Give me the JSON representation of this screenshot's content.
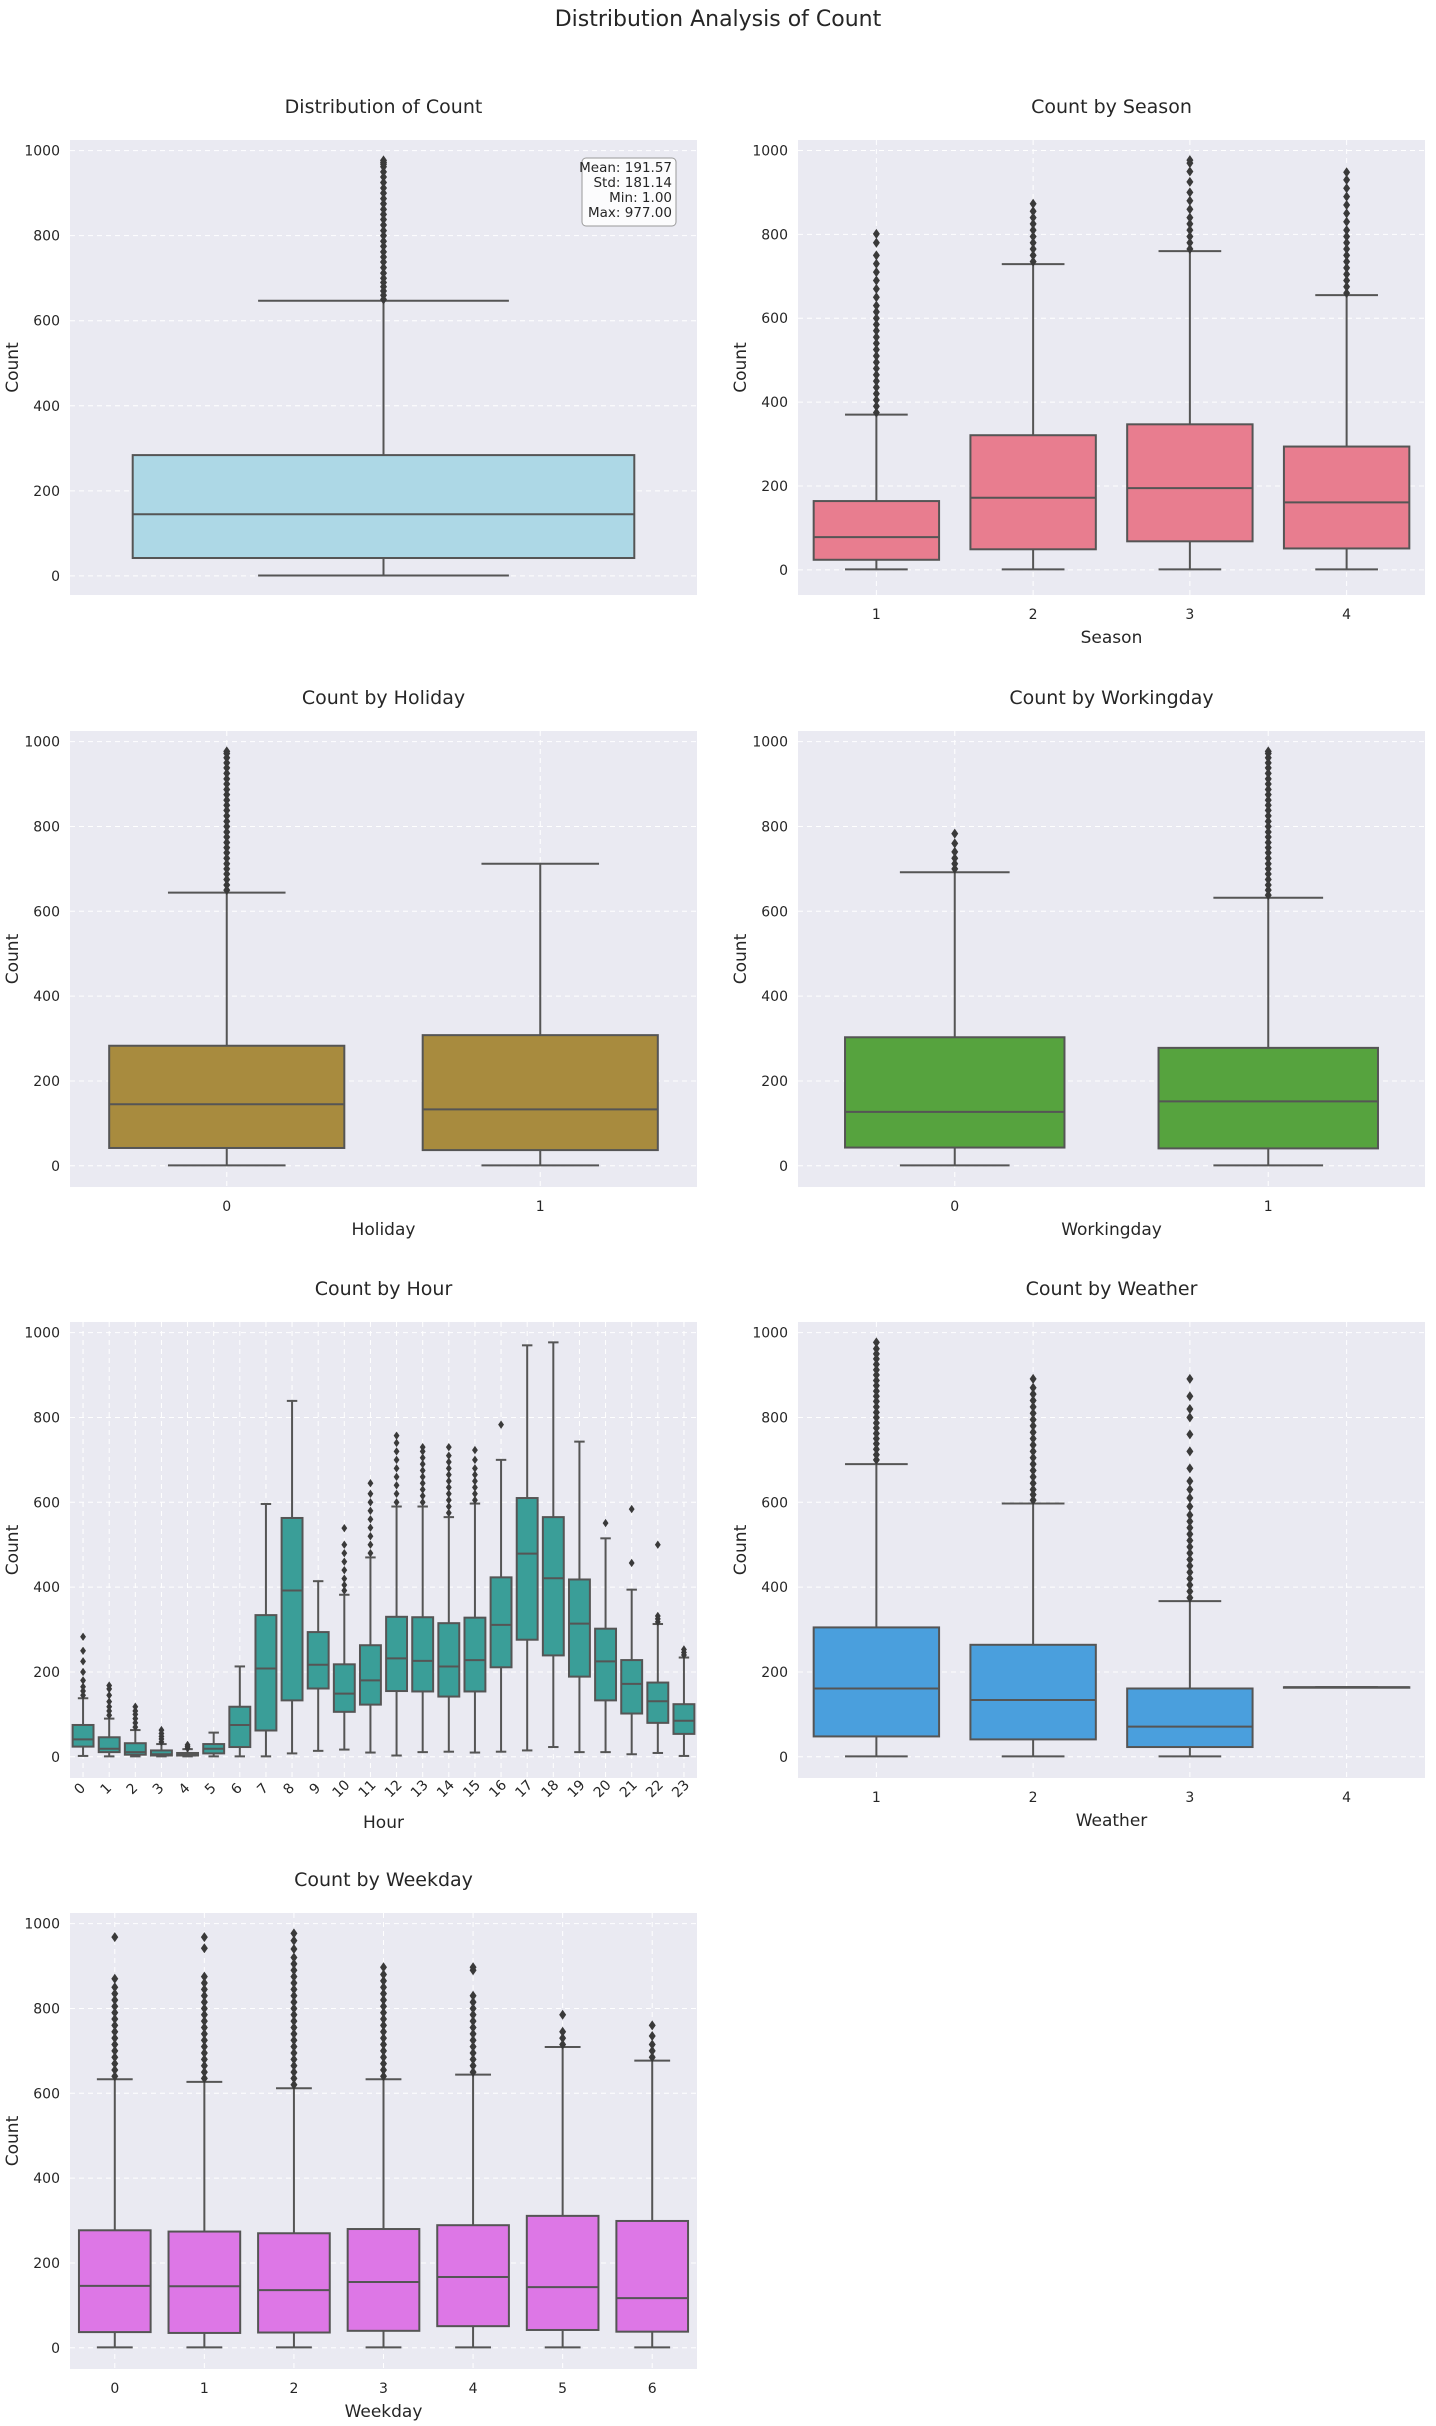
{
  "figure": {
    "suptitle": "Distribution Analysis of Count",
    "colors": {
      "panel_bg": "#eaeaf2",
      "grid": "#ffffff",
      "line": "#555555",
      "flier": "#3a3a3a"
    }
  },
  "chart_data": [
    {
      "id": "overall",
      "type": "boxplot",
      "title": "Distribution of Count",
      "xlabel": "",
      "ylabel": "Count",
      "ylim": [
        -45,
        1025
      ],
      "yticks": [
        0,
        200,
        400,
        600,
        800,
        1000
      ],
      "grid": true,
      "categories": [
        ""
      ],
      "box_color": "#add8e6",
      "stats_text": [
        "Mean: 191.57",
        "Std: 181.14",
        "Min: 1.00",
        "Max: 977.00"
      ],
      "boxes": [
        {
          "cat": "",
          "whislo": 1,
          "q1": 42,
          "med": 145,
          "q3": 284,
          "whishi": 647,
          "fliers": [
            650,
            660,
            670,
            680,
            690,
            700,
            712,
            725,
            738,
            750,
            762,
            775,
            787,
            800,
            812,
            825,
            838,
            850,
            862,
            875,
            887,
            900,
            912,
            925,
            938,
            950,
            962,
            968,
            972,
            977
          ]
        }
      ]
    },
    {
      "id": "season",
      "type": "boxplot",
      "title": "Count by Season",
      "xlabel": "Season",
      "ylabel": "Count",
      "ylim": [
        -60,
        1025
      ],
      "yticks": [
        0,
        200,
        400,
        600,
        800,
        1000
      ],
      "grid": true,
      "categories": [
        "1",
        "2",
        "3",
        "4"
      ],
      "box_color": "#e87d8f",
      "boxes": [
        {
          "cat": "1",
          "whislo": 1,
          "q1": 24,
          "med": 78,
          "q3": 164,
          "whishi": 370,
          "fliers": [
            375,
            390,
            405,
            420,
            435,
            450,
            465,
            480,
            495,
            510,
            525,
            540,
            555,
            570,
            585,
            600,
            615,
            630,
            650,
            670,
            690,
            710,
            730,
            750,
            780,
            801
          ]
        },
        {
          "cat": "2",
          "whislo": 1,
          "q1": 49,
          "med": 172,
          "q3": 321,
          "whishi": 729,
          "fliers": [
            735,
            750,
            765,
            780,
            795,
            810,
            825,
            840,
            855,
            873
          ]
        },
        {
          "cat": "3",
          "whislo": 1,
          "q1": 68,
          "med": 195,
          "q3": 347,
          "whishi": 760,
          "fliers": [
            765,
            780,
            795,
            810,
            825,
            840,
            860,
            880,
            900,
            925,
            950,
            970,
            977
          ]
        },
        {
          "cat": "4",
          "whislo": 1,
          "q1": 51,
          "med": 161,
          "q3": 294,
          "whishi": 655,
          "fliers": [
            660,
            675,
            690,
            705,
            720,
            735,
            750,
            765,
            780,
            795,
            810,
            830,
            850,
            870,
            890,
            910,
            930,
            948
          ]
        }
      ]
    },
    {
      "id": "holiday",
      "type": "boxplot",
      "title": "Count by Holiday",
      "xlabel": "Holiday",
      "ylabel": "Count",
      "ylim": [
        -50,
        1025
      ],
      "yticks": [
        0,
        200,
        400,
        600,
        800,
        1000
      ],
      "grid": true,
      "categories": [
        "0",
        "1"
      ],
      "box_color": "#a88b3e",
      "boxes": [
        {
          "cat": "0",
          "whislo": 1,
          "q1": 42,
          "med": 145,
          "q3": 283,
          "whishi": 644,
          "fliers": [
            650,
            662,
            675,
            688,
            700,
            712,
            725,
            738,
            750,
            762,
            775,
            787,
            800,
            812,
            825,
            838,
            850,
            862,
            875,
            887,
            900,
            912,
            925,
            938,
            950,
            962,
            972,
            977
          ]
        },
        {
          "cat": "1",
          "whislo": 1,
          "q1": 37,
          "med": 133,
          "q3": 308,
          "whishi": 712,
          "fliers": []
        }
      ]
    },
    {
      "id": "workingday",
      "type": "boxplot",
      "title": "Count by Workingday",
      "xlabel": "Workingday",
      "ylabel": "Count",
      "ylim": [
        -50,
        1025
      ],
      "yticks": [
        0,
        200,
        400,
        600,
        800,
        1000
      ],
      "grid": true,
      "categories": [
        "0",
        "1"
      ],
      "box_color": "#56a33e",
      "boxes": [
        {
          "cat": "0",
          "whislo": 1,
          "q1": 43,
          "med": 127,
          "q3": 303,
          "whishi": 692,
          "fliers": [
            700,
            712,
            725,
            740,
            760,
            783
          ]
        },
        {
          "cat": "1",
          "whislo": 1,
          "q1": 41,
          "med": 152,
          "q3": 278,
          "whishi": 632,
          "fliers": [
            638,
            650,
            662,
            675,
            688,
            700,
            712,
            725,
            738,
            750,
            762,
            775,
            787,
            800,
            812,
            825,
            838,
            850,
            862,
            875,
            887,
            900,
            912,
            925,
            938,
            950,
            962,
            972,
            977
          ]
        }
      ]
    },
    {
      "id": "hour",
      "type": "boxplot",
      "title": "Count by Hour",
      "xlabel": "Hour",
      "ylabel": "Count",
      "ylim": [
        -50,
        1025
      ],
      "yticks": [
        0,
        200,
        400,
        600,
        800,
        1000
      ],
      "grid": true,
      "rotate_xticks": true,
      "categories": [
        "0",
        "1",
        "2",
        "3",
        "4",
        "5",
        "6",
        "7",
        "8",
        "9",
        "10",
        "11",
        "12",
        "13",
        "14",
        "15",
        "16",
        "17",
        "18",
        "19",
        "20",
        "21",
        "22",
        "23"
      ],
      "box_color": "#3a9e98",
      "boxes": [
        {
          "cat": "0",
          "whislo": 2,
          "q1": 24,
          "med": 41,
          "q3": 75,
          "whishi": 138,
          "fliers": [
            145,
            155,
            165,
            180,
            200,
            225,
            250,
            283
          ]
        },
        {
          "cat": "1",
          "whislo": 1,
          "q1": 11,
          "med": 19,
          "q3": 46,
          "whishi": 90,
          "fliers": [
            98,
            108,
            118,
            130,
            145,
            160,
            168
          ]
        },
        {
          "cat": "2",
          "whislo": 1,
          "q1": 5,
          "med": 11,
          "q3": 32,
          "whishi": 63,
          "fliers": [
            70,
            80,
            90,
            100,
            108,
            118
          ]
        },
        {
          "cat": "3",
          "whislo": 1,
          "q1": 3,
          "med": 6,
          "q3": 15,
          "whishi": 30,
          "fliers": [
            35,
            42,
            48,
            55,
            63
          ]
        },
        {
          "cat": "4",
          "whislo": 1,
          "q1": 3,
          "med": 6,
          "q3": 9,
          "whishi": 18,
          "fliers": [
            20,
            24,
            28
          ]
        },
        {
          "cat": "5",
          "whislo": 1,
          "q1": 8,
          "med": 19,
          "q3": 30,
          "whishi": 57,
          "fliers": []
        },
        {
          "cat": "6",
          "whislo": 1,
          "q1": 23,
          "med": 75,
          "q3": 118,
          "whishi": 213,
          "fliers": []
        },
        {
          "cat": "7",
          "whislo": 1,
          "q1": 62,
          "med": 208,
          "q3": 334,
          "whishi": 596,
          "fliers": []
        },
        {
          "cat": "8",
          "whislo": 8,
          "q1": 133,
          "med": 392,
          "q3": 563,
          "whishi": 839,
          "fliers": []
        },
        {
          "cat": "9",
          "whislo": 14,
          "q1": 161,
          "med": 217,
          "q3": 294,
          "whishi": 414,
          "fliers": []
        },
        {
          "cat": "10",
          "whislo": 17,
          "q1": 106,
          "med": 149,
          "q3": 218,
          "whishi": 382,
          "fliers": [
            392,
            405,
            420,
            440,
            460,
            480,
            500,
            539
          ]
        },
        {
          "cat": "11",
          "whislo": 10,
          "q1": 123,
          "med": 180,
          "q3": 263,
          "whishi": 470,
          "fliers": [
            480,
            500,
            520,
            540,
            560,
            580,
            600,
            620,
            645
          ]
        },
        {
          "cat": "12",
          "whislo": 3,
          "q1": 155,
          "med": 232,
          "q3": 330,
          "whishi": 590,
          "fliers": [
            600,
            620,
            640,
            660,
            680,
            700,
            720,
            740,
            757
          ]
        },
        {
          "cat": "13",
          "whislo": 11,
          "q1": 154,
          "med": 226,
          "q3": 329,
          "whishi": 590,
          "fliers": [
            600,
            615,
            630,
            645,
            660,
            675,
            690,
            705,
            720,
            730
          ]
        },
        {
          "cat": "14",
          "whislo": 12,
          "q1": 142,
          "med": 213,
          "q3": 315,
          "whishi": 565,
          "fliers": [
            575,
            590,
            605,
            620,
            635,
            650,
            665,
            680,
            695,
            710,
            730
          ]
        },
        {
          "cat": "15",
          "whislo": 10,
          "q1": 154,
          "med": 228,
          "q3": 328,
          "whishi": 597,
          "fliers": [
            605,
            620,
            635,
            650,
            665,
            680,
            700,
            723
          ]
        },
        {
          "cat": "16",
          "whislo": 12,
          "q1": 211,
          "med": 311,
          "q3": 423,
          "whishi": 700,
          "fliers": [
            783
          ]
        },
        {
          "cat": "17",
          "whislo": 15,
          "q1": 276,
          "med": 479,
          "q3": 610,
          "whishi": 970,
          "fliers": []
        },
        {
          "cat": "18",
          "whislo": 23,
          "q1": 239,
          "med": 421,
          "q3": 565,
          "whishi": 977,
          "fliers": []
        },
        {
          "cat": "19",
          "whislo": 11,
          "q1": 189,
          "med": 314,
          "q3": 418,
          "whishi": 743,
          "fliers": []
        },
        {
          "cat": "20",
          "whislo": 11,
          "q1": 133,
          "med": 225,
          "q3": 302,
          "whishi": 515,
          "fliers": [
            551
          ]
        },
        {
          "cat": "21",
          "whislo": 6,
          "q1": 102,
          "med": 172,
          "q3": 228,
          "whishi": 394,
          "fliers": [
            457,
            584
          ]
        },
        {
          "cat": "22",
          "whislo": 9,
          "q1": 80,
          "med": 131,
          "q3": 175,
          "whishi": 313,
          "fliers": [
            318,
            325,
            332,
            500
          ]
        },
        {
          "cat": "23",
          "whislo": 2,
          "q1": 54,
          "med": 85,
          "q3": 124,
          "whishi": 234,
          "fliers": [
            240,
            246,
            253
          ]
        }
      ]
    },
    {
      "id": "weather",
      "type": "boxplot",
      "title": "Count by Weather",
      "xlabel": "Weather",
      "ylabel": "Count",
      "ylim": [
        -50,
        1025
      ],
      "yticks": [
        0,
        200,
        400,
        600,
        800,
        1000
      ],
      "grid": true,
      "categories": [
        "1",
        "2",
        "3",
        "4"
      ],
      "box_color": "#4a9fdd",
      "boxes": [
        {
          "cat": "1",
          "whislo": 1,
          "q1": 48,
          "med": 161,
          "q3": 305,
          "whishi": 690,
          "fliers": [
            700,
            712,
            725,
            738,
            750,
            762,
            775,
            787,
            800,
            812,
            825,
            838,
            850,
            862,
            875,
            887,
            900,
            912,
            925,
            938,
            950,
            962,
            977
          ]
        },
        {
          "cat": "2",
          "whislo": 1,
          "q1": 41,
          "med": 134,
          "q3": 264,
          "whishi": 597,
          "fliers": [
            605,
            618,
            630,
            645,
            660,
            675,
            690,
            705,
            720,
            735,
            750,
            765,
            780,
            795,
            810,
            825,
            840,
            855,
            870,
            891
          ]
        },
        {
          "cat": "3",
          "whislo": 1,
          "q1": 23,
          "med": 71,
          "q3": 161,
          "whishi": 367,
          "fliers": [
            375,
            390,
            405,
            420,
            435,
            450,
            465,
            480,
            495,
            510,
            525,
            540,
            555,
            570,
            590,
            610,
            630,
            650,
            680,
            720,
            760,
            800,
            820,
            850,
            891
          ]
        },
        {
          "cat": "4",
          "whislo": 164,
          "q1": 164,
          "med": 164,
          "q3": 164,
          "whishi": 164,
          "fliers": []
        }
      ]
    },
    {
      "id": "weekday",
      "type": "boxplot",
      "title": "Count by Weekday",
      "xlabel": "Weekday",
      "ylabel": "Count",
      "ylim": [
        -50,
        1025
      ],
      "yticks": [
        0,
        200,
        400,
        600,
        800,
        1000
      ],
      "grid": true,
      "categories": [
        "0",
        "1",
        "2",
        "3",
        "4",
        "5",
        "6"
      ],
      "box_color": "#dd77e6",
      "boxes": [
        {
          "cat": "0",
          "whislo": 1,
          "q1": 37,
          "med": 146,
          "q3": 277,
          "whishi": 633,
          "fliers": [
            640,
            655,
            670,
            685,
            700,
            715,
            730,
            745,
            760,
            775,
            790,
            805,
            820,
            835,
            850,
            870,
            968
          ]
        },
        {
          "cat": "1",
          "whislo": 1,
          "q1": 35,
          "med": 145,
          "q3": 274,
          "whishi": 627,
          "fliers": [
            635,
            650,
            665,
            680,
            695,
            710,
            725,
            740,
            755,
            770,
            785,
            800,
            815,
            830,
            845,
            860,
            875,
            942,
            968
          ]
        },
        {
          "cat": "2",
          "whislo": 1,
          "q1": 36,
          "med": 136,
          "q3": 270,
          "whishi": 612,
          "fliers": [
            620,
            635,
            650,
            665,
            680,
            695,
            710,
            725,
            740,
            755,
            770,
            785,
            800,
            815,
            830,
            845,
            860,
            875,
            890,
            905,
            920,
            940,
            960,
            977
          ]
        },
        {
          "cat": "3",
          "whislo": 1,
          "q1": 40,
          "med": 155,
          "q3": 280,
          "whishi": 633,
          "fliers": [
            640,
            655,
            670,
            685,
            700,
            715,
            730,
            745,
            760,
            775,
            790,
            805,
            820,
            835,
            850,
            865,
            880,
            897
          ]
        },
        {
          "cat": "4",
          "whislo": 1,
          "q1": 51,
          "med": 167,
          "q3": 289,
          "whishi": 644,
          "fliers": [
            650,
            665,
            680,
            695,
            710,
            725,
            740,
            755,
            770,
            785,
            800,
            815,
            830,
            890,
            897
          ]
        },
        {
          "cat": "5",
          "whislo": 1,
          "q1": 42,
          "med": 143,
          "q3": 311,
          "whishi": 709,
          "fliers": [
            715,
            730,
            745,
            785
          ]
        },
        {
          "cat": "6",
          "whislo": 1,
          "q1": 38,
          "med": 117,
          "q3": 299,
          "whishi": 677,
          "fliers": [
            685,
            700,
            715,
            735,
            760
          ]
        }
      ]
    }
  ]
}
